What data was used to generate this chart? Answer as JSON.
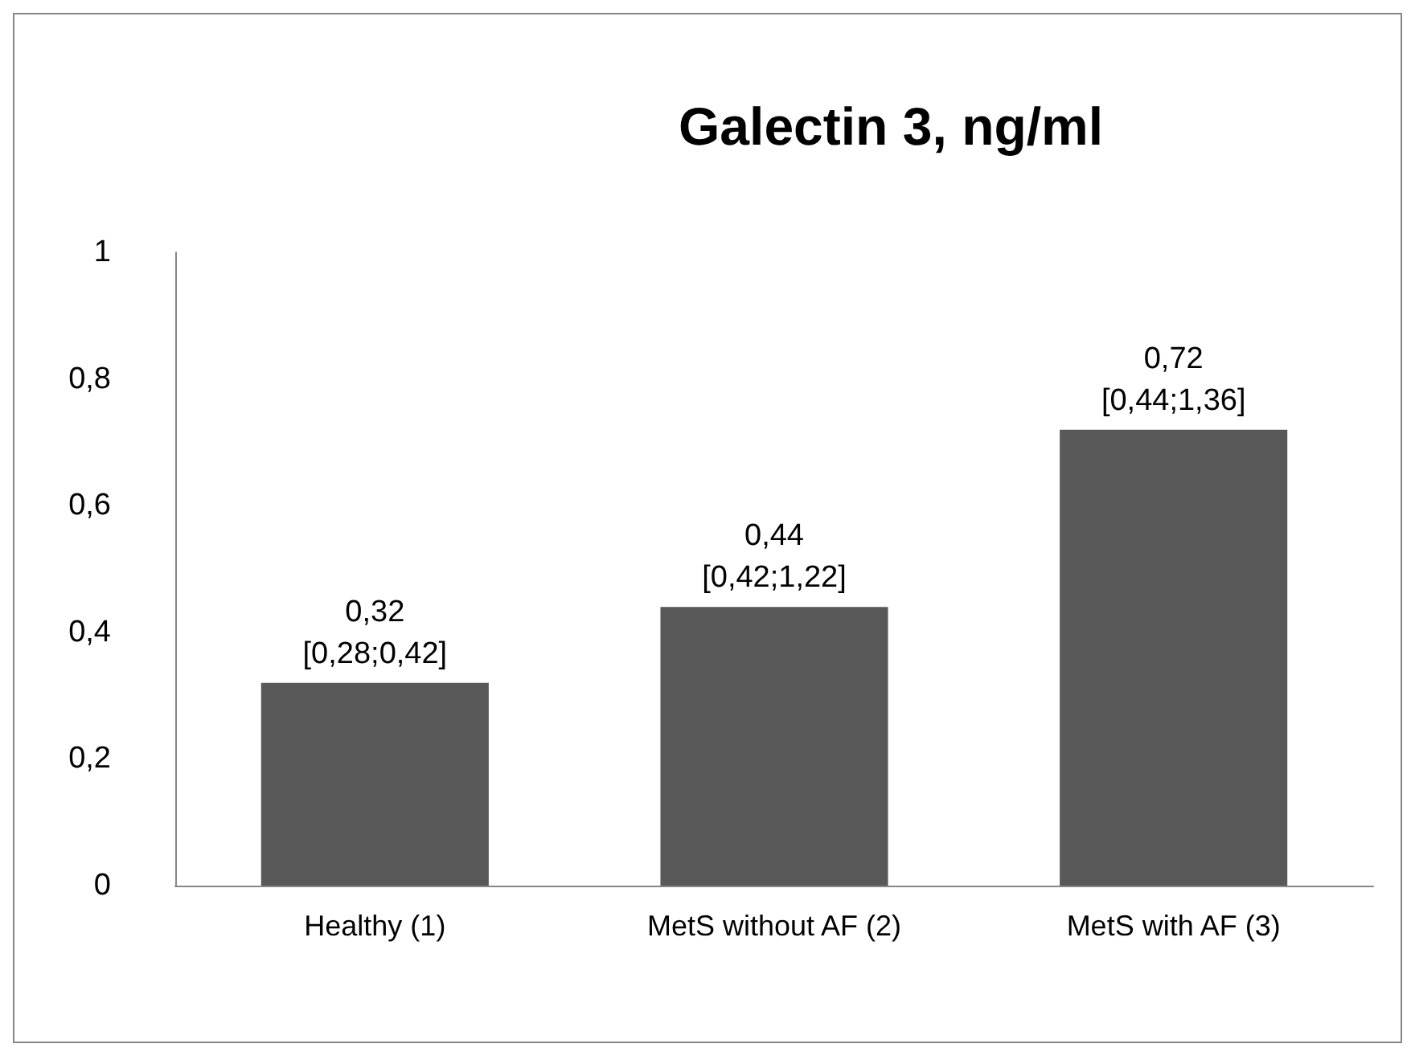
{
  "chart_data": {
    "type": "bar",
    "title": "Galectin 3, ng/ml",
    "categories": [
      "Healthy (1)",
      "MetS without AF (2)",
      "MetS with AF (3)"
    ],
    "values": [
      0.32,
      0.44,
      0.72
    ],
    "color": "#595959",
    "value_labels": [
      "0,32\n[0,28;0,42]",
      "0,44\n[0,42;1,22]",
      "0,72\n[0,44;1,36]"
    ],
    "ylim": [
      0,
      1
    ],
    "yticks": [
      0,
      {
        "value": 0.2,
        "label": "0,2"
      },
      {
        "value": 0.4,
        "label": "0,4"
      },
      {
        "value": 0.6,
        "label": "0,6"
      },
      {
        "value": 0.8,
        "label": "0,8"
      },
      1
    ],
    "grid": false
  }
}
